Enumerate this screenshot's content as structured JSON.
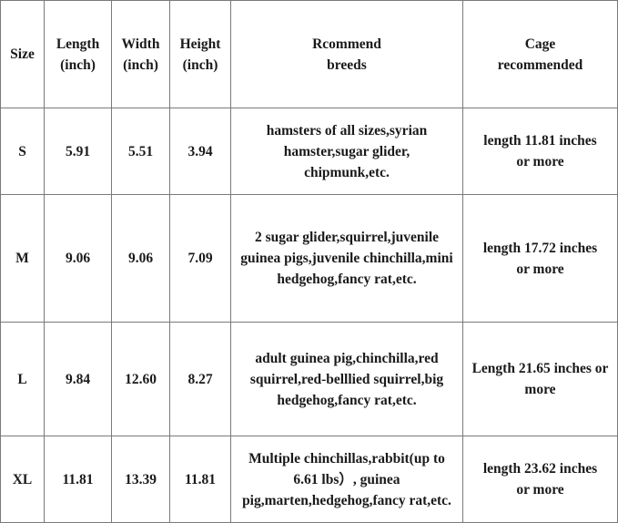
{
  "headers": [
    "Size",
    "Length\n(inch)",
    "Width\n(inch)",
    "Height\n(inch)",
    "Rcommend\nbreeds",
    "Cage\nrecommended"
  ],
  "rows": [
    {
      "size": "S",
      "length": "5.91",
      "width": "5.51",
      "height": "3.94",
      "breeds": "hamsters of all sizes,syrian hamster,sugar glider, chipmunk,etc.",
      "cage": "length 11.81 inches or more"
    },
    {
      "size": "M",
      "length": "9.06",
      "width": "9.06",
      "height": "7.09",
      "breeds": "2 sugar glider,squirrel,juvenile guinea pigs,juvenile chinchilla,mini hedgehog,fancy rat,etc.",
      "cage": "length 17.72 inches or more"
    },
    {
      "size": "L",
      "length": "9.84",
      "width": "12.60",
      "height": "8.27",
      "breeds": "adult guinea pig,chinchilla,red squirrel,red-belllied squirrel,big hedgehog,fancy rat,etc.",
      "cage": "Length 21.65 inches or more"
    },
    {
      "size": "XL",
      "length": "11.81",
      "width": "13.39",
      "height": "11.81",
      "breeds": "Multiple chinchillas,rabbit(up to 6.61 lbs）, guinea pig,marten,hedgehog,fancy rat,etc.",
      "cage": "length 23.62 inches or more"
    }
  ]
}
